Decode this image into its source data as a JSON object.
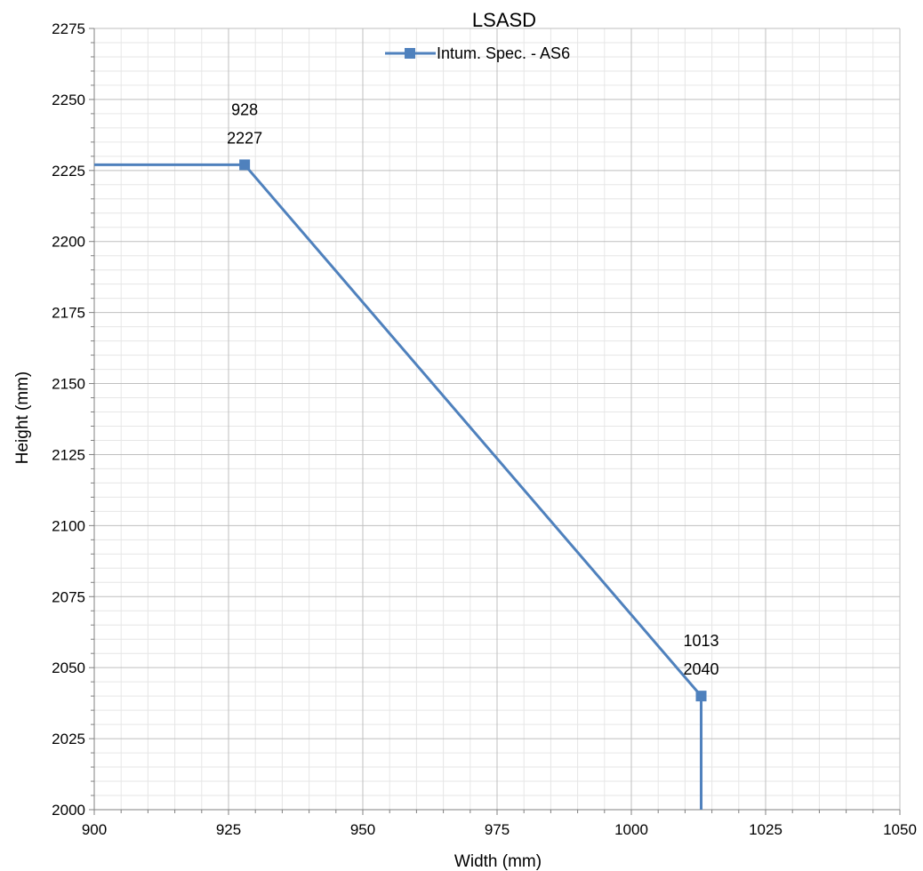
{
  "chart_data": {
    "type": "line",
    "title": "LSASD",
    "xlabel": "Width (mm)",
    "ylabel": "Height (mm)",
    "xlim": [
      900,
      1050
    ],
    "ylim": [
      2000,
      2275
    ],
    "x_major_step": 25,
    "y_major_step": 25,
    "x_minor_step": 5,
    "y_minor_step": 5,
    "x_ticks": [
      "900",
      "925",
      "950",
      "975",
      "1000",
      "1025",
      "1050"
    ],
    "y_ticks": [
      "2000",
      "2025",
      "2050",
      "2075",
      "2100",
      "2125",
      "2150",
      "2175",
      "2200",
      "2225",
      "2250",
      "2275"
    ],
    "grid": true,
    "legend_position": "top-center",
    "series": [
      {
        "name": "Intum. Spec. - AS6",
        "color": "#4f81bd",
        "marker": "square",
        "line": [
          {
            "x": 900,
            "y": 2227
          },
          {
            "x": 928,
            "y": 2227
          },
          {
            "x": 1013,
            "y": 2040
          },
          {
            "x": 1013,
            "y": 2000
          }
        ],
        "markers": [
          {
            "x": 928,
            "y": 2227
          },
          {
            "x": 1013,
            "y": 2040
          }
        ]
      }
    ],
    "annotations": [
      {
        "x": 928,
        "y": 2227,
        "line1": "928",
        "line2": "2227"
      },
      {
        "x": 1013,
        "y": 2040,
        "line1": "1013",
        "line2": "2040"
      }
    ]
  }
}
